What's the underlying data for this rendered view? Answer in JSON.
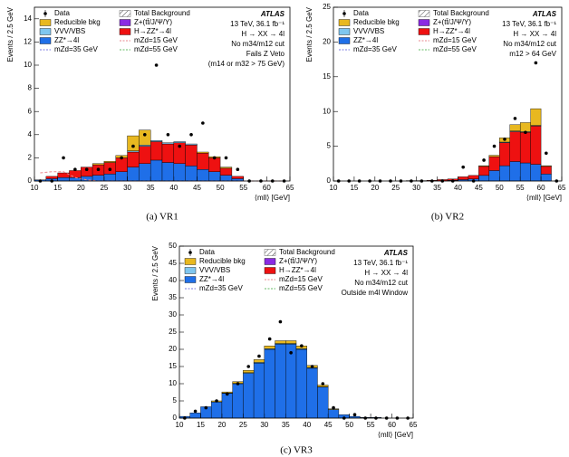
{
  "chart_data": [
    {
      "type": "histogram",
      "stacked": true,
      "caption": "(a) VR1",
      "xlabel": "⟨mll⟩ [GeV]",
      "ylabel": "Events / 2.5 GeV",
      "bins": [
        10,
        12.5,
        15,
        17.5,
        20,
        22.5,
        25,
        27.5,
        30,
        32.5,
        35,
        37.5,
        40,
        42.5,
        45,
        47.5,
        50,
        52.5,
        55,
        57.5,
        60,
        62.5,
        65
      ],
      "xlim": [
        10,
        65
      ],
      "xticks": [
        10,
        15,
        20,
        25,
        30,
        35,
        40,
        45,
        50,
        55,
        60,
        65
      ],
      "ylim": [
        0,
        15
      ],
      "yticks": [
        0,
        2,
        4,
        6,
        8,
        10,
        12,
        14
      ],
      "annotations": [
        "ATLAS",
        "13 TeV, 36.1 fb⁻¹",
        "H → XX → 4l",
        "No m34/m12 cut",
        "Fails Z Veto",
        "(m14 or m32 > 75 GeV)"
      ],
      "total_name": "Total Background",
      "series": [
        {
          "name": "ZZ*→4l",
          "color": "#1f6fe8",
          "values": [
            0.1,
            0.2,
            0.3,
            0.3,
            0.4,
            0.5,
            0.6,
            0.8,
            1.2,
            1.5,
            1.8,
            1.6,
            1.5,
            1.3,
            1.0,
            0.8,
            0.5,
            0.2,
            0,
            0,
            0,
            0
          ]
        },
        {
          "name": "H→ZZ*→4l",
          "color": "#ee1111",
          "values": [
            0,
            0.2,
            0.4,
            0.6,
            0.8,
            0.9,
            1.0,
            1.2,
            1.3,
            1.5,
            1.6,
            1.6,
            1.8,
            1.8,
            1.4,
            1.2,
            0.6,
            0.2,
            0,
            0,
            0,
            0
          ]
        },
        {
          "name": "VVV/VBS",
          "color": "#7fc6ef",
          "values": [
            0,
            0,
            0,
            0,
            0,
            0,
            0,
            0,
            0.1,
            0.1,
            0.1,
            0.1,
            0.1,
            0.1,
            0,
            0,
            0,
            0,
            0,
            0,
            0,
            0
          ]
        },
        {
          "name": "Z+(tt̄/J/Ψ/Υ)",
          "color": "#8a2be2",
          "values": [
            0,
            0,
            0,
            0,
            0,
            0,
            0,
            0,
            0,
            0,
            0,
            0,
            0,
            0,
            0,
            0,
            0,
            0,
            0,
            0,
            0,
            0
          ]
        },
        {
          "name": "Reducible bkg",
          "color": "#e8b820",
          "values": [
            0,
            0,
            0,
            0,
            0,
            0.1,
            0.1,
            0.2,
            1.3,
            1.3,
            0,
            0,
            0,
            0,
            0.1,
            0.1,
            0.1,
            0,
            0,
            0,
            0,
            0
          ]
        }
      ],
      "data": {
        "name": "Data",
        "values": [
          0,
          0,
          2,
          1,
          1,
          1,
          1,
          2,
          3,
          4,
          10,
          4,
          3,
          4,
          5,
          2,
          2,
          1,
          0,
          0,
          0,
          0
        ]
      },
      "signals": [
        {
          "name": "mZd=15 GeV",
          "color": "#e8888f",
          "values": [
            0.7,
            0.8,
            0.8,
            0.3,
            0.1,
            0,
            0,
            0,
            0,
            0,
            0,
            0,
            0,
            0,
            0,
            0,
            0,
            0,
            0,
            0,
            0,
            0
          ]
        },
        {
          "name": "mZd=35 GeV",
          "color": "#7a7ae0"
        },
        {
          "name": "mZd=55 GeV",
          "color": "#66bb66"
        }
      ]
    },
    {
      "type": "histogram",
      "stacked": true,
      "caption": "(b) VR2",
      "xlabel": "⟨mll⟩ [GeV]",
      "ylabel": "Events / 2.5 GeV",
      "bins": [
        10,
        12.5,
        15,
        17.5,
        20,
        22.5,
        25,
        27.5,
        30,
        32.5,
        35,
        37.5,
        40,
        42.5,
        45,
        47.5,
        50,
        52.5,
        55,
        57.5,
        60,
        62.5,
        65
      ],
      "xlim": [
        10,
        65
      ],
      "xticks": [
        10,
        15,
        20,
        25,
        30,
        35,
        40,
        45,
        50,
        55,
        60,
        65
      ],
      "ylim": [
        0,
        25
      ],
      "yticks": [
        0,
        5,
        10,
        15,
        20,
        25
      ],
      "annotations": [
        "ATLAS",
        "13 TeV, 36.1 fb⁻¹",
        "H → XX → 4l",
        "No m34/m12 cut",
        "m12 > 64 GeV"
      ],
      "total_name": "Total Background",
      "series": [
        {
          "name": "ZZ*→4l",
          "color": "#1f6fe8",
          "values": [
            0,
            0,
            0,
            0,
            0,
            0,
            0,
            0,
            0,
            0,
            0.05,
            0.1,
            0.2,
            0.3,
            0.8,
            1.5,
            2.2,
            2.8,
            2.6,
            2.4,
            1.0,
            0
          ]
        },
        {
          "name": "H→ZZ*→4l",
          "color": "#ee1111",
          "values": [
            0,
            0,
            0,
            0,
            0,
            0,
            0,
            0.05,
            0.05,
            0.1,
            0.15,
            0.2,
            0.4,
            0.5,
            1.3,
            2.0,
            3.3,
            4.3,
            4.4,
            5.5,
            1.1,
            0
          ]
        },
        {
          "name": "VVV/VBS",
          "color": "#7fc6ef",
          "values": [
            0,
            0,
            0,
            0,
            0,
            0,
            0,
            0,
            0,
            0,
            0,
            0,
            0,
            0,
            0,
            0,
            0.1,
            0.1,
            0.1,
            0.1,
            0,
            0
          ]
        },
        {
          "name": "Z+(tt̄/J/Ψ/Υ)",
          "color": "#8a2be2",
          "values": [
            0,
            0,
            0,
            0,
            0,
            0,
            0,
            0,
            0,
            0,
            0,
            0,
            0,
            0,
            0,
            0,
            0,
            0,
            0,
            0,
            0,
            0
          ]
        },
        {
          "name": "Reducible bkg",
          "color": "#e8b820",
          "values": [
            0,
            0,
            0,
            0,
            0,
            0,
            0,
            0,
            0,
            0,
            0,
            0,
            0,
            0,
            0.1,
            0.2,
            0.6,
            0.9,
            1.3,
            2.4,
            0.1,
            0
          ]
        }
      ],
      "data": {
        "name": "Data",
        "values": [
          0,
          0,
          0,
          0,
          0,
          0,
          0,
          0,
          0,
          0,
          0,
          0,
          2,
          0,
          3,
          5,
          6,
          9,
          7,
          17,
          4,
          0
        ]
      },
      "signals": [
        {
          "name": "mZd=15 GeV",
          "color": "#e8888f"
        },
        {
          "name": "mZd=35 GeV",
          "color": "#7a7ae0"
        },
        {
          "name": "mZd=55 GeV",
          "color": "#66bb66"
        }
      ]
    },
    {
      "type": "histogram",
      "stacked": true,
      "caption": "(c) VR3",
      "xlabel": "⟨mll⟩ [GeV]",
      "ylabel": "Events / 2.5 GeV",
      "bins": [
        10,
        12.5,
        15,
        17.5,
        20,
        22.5,
        25,
        27.5,
        30,
        32.5,
        35,
        37.5,
        40,
        42.5,
        45,
        47.5,
        50,
        52.5,
        55,
        57.5,
        60,
        62.5,
        65
      ],
      "xlim": [
        10,
        65
      ],
      "xticks": [
        10,
        15,
        20,
        25,
        30,
        35,
        40,
        45,
        50,
        55,
        60,
        65
      ],
      "ylim": [
        0,
        50
      ],
      "yticks": [
        0,
        5,
        10,
        15,
        20,
        25,
        30,
        35,
        40,
        45,
        50
      ],
      "annotations": [
        "ATLAS",
        "13 TeV, 36.1 fb⁻¹",
        "H → XX → 4l",
        "No m34/m12 cut",
        "Outside m4l Window"
      ],
      "total_name": "Total Background",
      "series": [
        {
          "name": "ZZ*→4l",
          "color": "#1f6fe8",
          "values": [
            0.5,
            1.5,
            3.3,
            4.7,
            7.2,
            10,
            13,
            16,
            20,
            21.5,
            21.5,
            20,
            14.5,
            9,
            2.5,
            1,
            0.5,
            0.2,
            0.2,
            0,
            0,
            0
          ]
        },
        {
          "name": "H→ZZ*→4l",
          "color": "#ee1111",
          "values": [
            0,
            0,
            0,
            0,
            0,
            0,
            0,
            0,
            0,
            0,
            0,
            0,
            0,
            0,
            0,
            0,
            0,
            0,
            0,
            0,
            0,
            0
          ]
        },
        {
          "name": "VVV/VBS",
          "color": "#7fc6ef",
          "values": [
            0,
            0,
            0,
            0,
            0.1,
            0.1,
            0.2,
            0.2,
            0.2,
            0.2,
            0.2,
            0.2,
            0.2,
            0.1,
            0,
            0,
            0,
            0,
            0,
            0,
            0,
            0
          ]
        },
        {
          "name": "Z+(tt̄/J/Ψ/Υ)",
          "color": "#8a2be2",
          "values": [
            0,
            0,
            0,
            0,
            0,
            0,
            0,
            0,
            0,
            0,
            0,
            0,
            0,
            0,
            0,
            0,
            0,
            0,
            0,
            0,
            0,
            0
          ]
        },
        {
          "name": "Reducible bkg",
          "color": "#e8b820",
          "values": [
            0,
            0,
            0,
            0.3,
            0.3,
            0.5,
            0.7,
            0.8,
            0.8,
            0.8,
            0.8,
            0.8,
            0.6,
            0.5,
            0.2,
            0,
            0,
            0,
            0,
            0,
            0,
            0
          ]
        }
      ],
      "data": {
        "name": "Data",
        "values": [
          0,
          2,
          3,
          5,
          7,
          10,
          15,
          18,
          23,
          28,
          19,
          21,
          15,
          10,
          3,
          0,
          1,
          0,
          0,
          0,
          0,
          0
        ]
      },
      "signals": [
        {
          "name": "mZd=15 GeV",
          "color": "#e8888f"
        },
        {
          "name": "mZd=35 GeV",
          "color": "#7a7ae0"
        },
        {
          "name": "mZd=55 GeV",
          "color": "#66bb66"
        }
      ]
    }
  ]
}
